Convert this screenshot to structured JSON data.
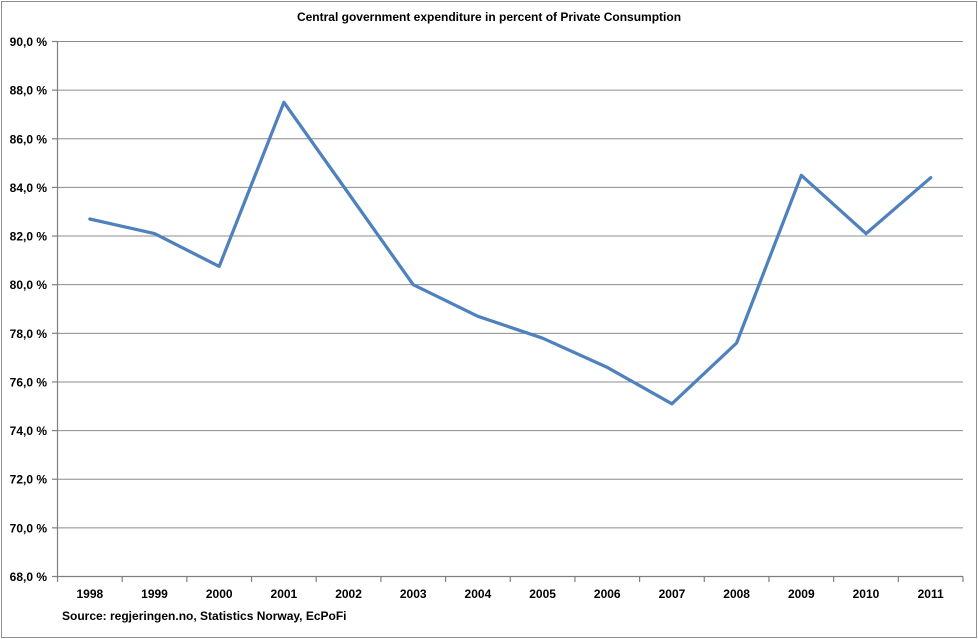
{
  "chart_data": {
    "type": "line",
    "title": "Central government expenditure in percent of Private Consumption",
    "source_note": "Source: regjeringen.no, Statistics Norway, EcPoFi",
    "categories": [
      "1998",
      "1999",
      "2000",
      "2001",
      "2002",
      "2003",
      "2004",
      "2005",
      "2006",
      "2007",
      "2008",
      "2009",
      "2010",
      "2011"
    ],
    "values": [
      82.7,
      82.1,
      80.75,
      87.5,
      83.75,
      80.0,
      78.7,
      77.8,
      76.6,
      75.1,
      77.6,
      84.5,
      82.1,
      84.4
    ],
    "ylim": [
      68,
      90
    ],
    "y_tick_step": 2,
    "y_tick_labels": [
      "68,0 %",
      "70,0 %",
      "72,0 %",
      "74,0 %",
      "76,0 %",
      "78,0 %",
      "80,0 %",
      "82,0 %",
      "84,0 %",
      "86,0 %",
      "88,0 %",
      "90,0 %"
    ],
    "grid": "horizontal-only",
    "legend": "none",
    "line_color": "#4F81BD",
    "grid_color": "#8c8c8c",
    "axis_color": "#7f7f7f",
    "text_color": "#000000"
  }
}
